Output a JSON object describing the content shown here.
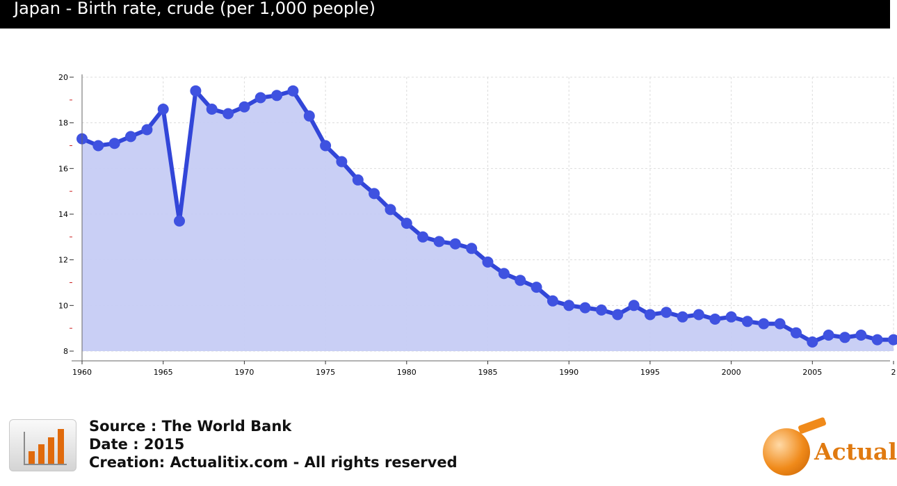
{
  "header": {
    "title": "Japan - Birth rate, crude (per 1,000 people)"
  },
  "chart_data": {
    "type": "area",
    "title": "Japan - Birth rate, crude (per 1,000 people)",
    "xlabel": "",
    "ylabel": "",
    "ylim": [
      8,
      20
    ],
    "xlim": [
      1960,
      2010
    ],
    "y_ticks": [
      "20",
      "18",
      "16",
      "14",
      "12",
      "10",
      "8"
    ],
    "x_ticks": [
      "1960",
      "1965",
      "1970",
      "1975",
      "1980",
      "1985",
      "1990",
      "1995",
      "2000",
      "2005",
      "2"
    ],
    "grid": true,
    "x": [
      1960,
      1961,
      1962,
      1963,
      1964,
      1965,
      1966,
      1967,
      1968,
      1969,
      1970,
      1971,
      1972,
      1973,
      1974,
      1975,
      1976,
      1977,
      1978,
      1979,
      1980,
      1981,
      1982,
      1983,
      1984,
      1985,
      1986,
      1987,
      1988,
      1989,
      1990,
      1991,
      1992,
      1993,
      1994,
      1995,
      1996,
      1997,
      1998,
      1999,
      2000,
      2001,
      2002,
      2003,
      2004,
      2005,
      2006,
      2007,
      2008,
      2009,
      2010
    ],
    "series": [
      {
        "values": [
          17.3,
          17.0,
          17.1,
          17.4,
          17.7,
          18.6,
          13.7,
          19.4,
          18.6,
          18.4,
          18.7,
          19.1,
          19.2,
          19.4,
          18.3,
          17.0,
          16.3,
          15.5,
          14.9,
          14.2,
          13.6,
          13.0,
          12.8,
          12.7,
          12.5,
          11.9,
          11.4,
          11.1,
          10.8,
          10.2,
          10.0,
          9.9,
          9.8,
          9.6,
          10.0,
          9.6,
          9.7,
          9.5,
          9.6,
          9.4,
          9.5,
          9.3,
          9.2,
          9.2,
          8.8,
          8.4,
          8.7,
          8.6,
          8.7,
          8.5,
          8.5
        ]
      }
    ],
    "colors": {
      "line": "#3246d8",
      "fill": "#c6ccf4",
      "marker": "#3f52e0"
    }
  },
  "footer": {
    "source": "Source : The World Bank",
    "date": "Date : 2015",
    "creation": "Creation: Actualitix.com - All rights reserved",
    "logo_text": "Actual"
  }
}
